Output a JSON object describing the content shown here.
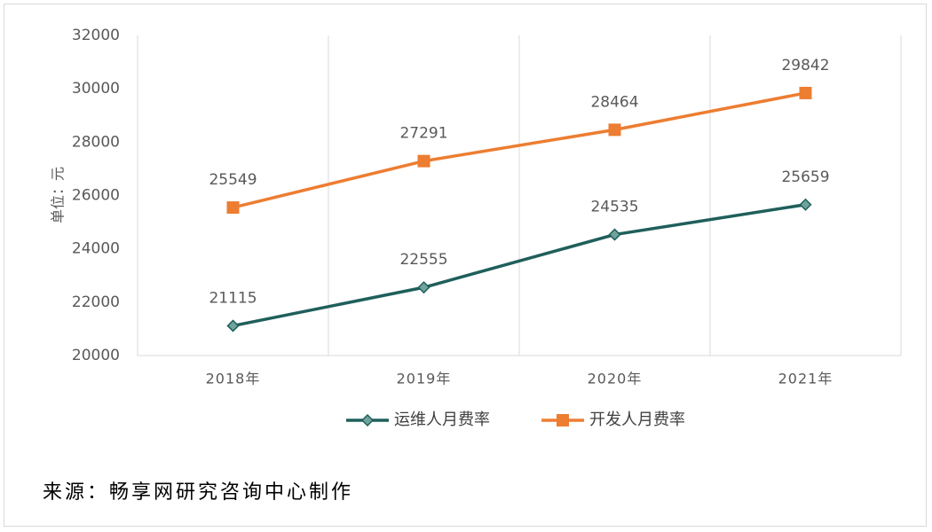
{
  "chart_data": {
    "type": "line",
    "categories": [
      "2018年",
      "2019年",
      "2020年",
      "2021年"
    ],
    "ylabel": "单位：元",
    "ylim": [
      20000,
      32000
    ],
    "yticks": [
      20000,
      22000,
      24000,
      26000,
      28000,
      30000,
      32000
    ],
    "grid": "vertical",
    "legend_position": "bottom",
    "series": [
      {
        "name": "运维人月费率",
        "values": [
          21115,
          22555,
          24535,
          25659
        ],
        "color": "#1f5f5b",
        "marker": "diamond"
      },
      {
        "name": "开发人月费率",
        "values": [
          25549,
          27291,
          28464,
          29842
        ],
        "color": "#ed7d31",
        "marker": "square"
      }
    ]
  },
  "footer": {
    "source": "来源：畅享网研究咨询中心制作"
  }
}
